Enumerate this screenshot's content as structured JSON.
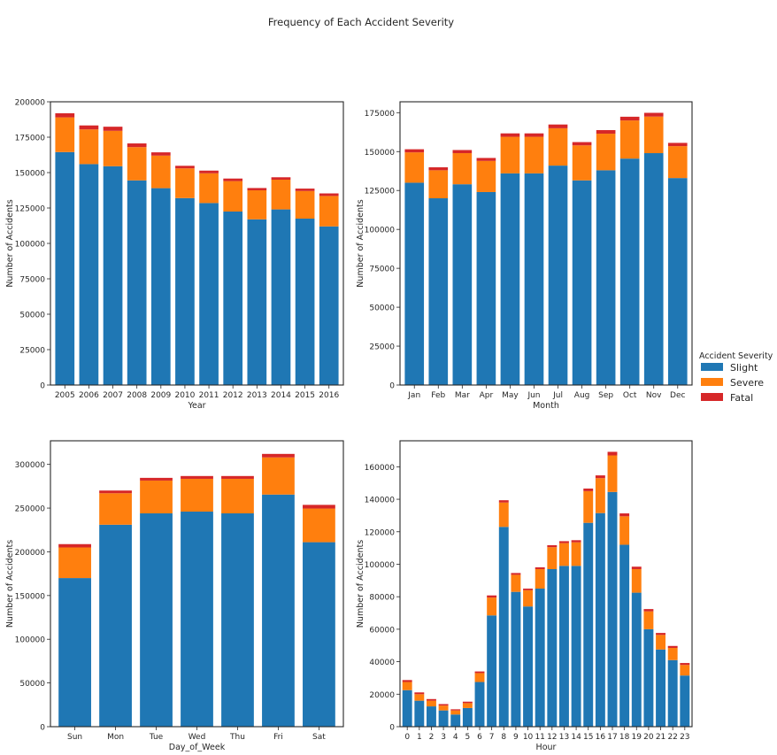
{
  "title": "Frequency of Each Accident Severity",
  "legend": {
    "title": "Accident Severity",
    "placement": "right-center",
    "entries": [
      {
        "name": "Slight",
        "color": "#1f77b4"
      },
      {
        "name": "Severe",
        "color": "#ff7f0e"
      },
      {
        "name": "Fatal",
        "color": "#d62728"
      }
    ]
  },
  "chart_data": [
    {
      "type": "bar",
      "stacked": true,
      "xlabel": "Year",
      "ylabel": "Number of Accidents",
      "ylim": [
        0,
        200000
      ],
      "yticks": [
        0,
        25000,
        50000,
        75000,
        100000,
        125000,
        150000,
        175000,
        200000
      ],
      "categories": [
        "2005",
        "2006",
        "2007",
        "2008",
        "2009",
        "2010",
        "2011",
        "2012",
        "2013",
        "2014",
        "2015",
        "2016"
      ],
      "series": [
        {
          "name": "Slight",
          "values": [
            164500,
            156000,
            154500,
            144500,
            139000,
            132000,
            128500,
            122500,
            117000,
            124000,
            117500,
            112000
          ]
        },
        {
          "name": "Severe",
          "values": [
            24500,
            24500,
            25000,
            23500,
            23000,
            21000,
            21000,
            21500,
            20500,
            21000,
            19500,
            21500
          ]
        },
        {
          "name": "Fatal",
          "values": [
            2900,
            2800,
            2900,
            2600,
            2300,
            1800,
            1900,
            1800,
            1600,
            1700,
            1700,
            1800
          ]
        }
      ]
    },
    {
      "type": "bar",
      "stacked": true,
      "xlabel": "Month",
      "ylabel": "Number of Accidents",
      "ylim": [
        0,
        182000
      ],
      "yticks": [
        0,
        25000,
        50000,
        75000,
        100000,
        125000,
        150000,
        175000
      ],
      "categories": [
        "Jan",
        "Feb",
        "Mar",
        "Apr",
        "May",
        "Jun",
        "Jul",
        "Aug",
        "Sep",
        "Oct",
        "Nov",
        "Dec"
      ],
      "series": [
        {
          "name": "Slight",
          "values": [
            130000,
            120000,
            129000,
            124000,
            136000,
            136000,
            141000,
            131500,
            138000,
            145500,
            149000,
            133000
          ]
        },
        {
          "name": "Severe",
          "values": [
            19500,
            18000,
            20000,
            20000,
            23500,
            23500,
            24000,
            22500,
            23500,
            24500,
            23500,
            20500
          ]
        },
        {
          "name": "Fatal",
          "values": [
            2000,
            1900,
            2000,
            1900,
            2200,
            2200,
            2400,
            2100,
            2300,
            2400,
            2400,
            2100
          ]
        }
      ]
    },
    {
      "type": "bar",
      "stacked": true,
      "xlabel": "Day_of_Week",
      "ylabel": "Number of Accidents",
      "ylim": [
        0,
        327000
      ],
      "yticks": [
        0,
        50000,
        100000,
        150000,
        200000,
        250000,
        300000
      ],
      "categories": [
        "Sun",
        "Mon",
        "Tue",
        "Wed",
        "Thu",
        "Fri",
        "Sat"
      ],
      "series": [
        {
          "name": "Slight",
          "values": [
            170000,
            231000,
            244000,
            246000,
            244000,
            265500,
            211000
          ]
        },
        {
          "name": "Severe",
          "values": [
            35000,
            36000,
            37500,
            37500,
            39500,
            42500,
            38500
          ]
        },
        {
          "name": "Fatal",
          "values": [
            3800,
            3100,
            3100,
            3200,
            3200,
            4000,
            4200
          ]
        }
      ]
    },
    {
      "type": "bar",
      "stacked": true,
      "xlabel": "Hour",
      "ylabel": "Number of Accidents",
      "ylim": [
        0,
        176000
      ],
      "yticks": [
        0,
        20000,
        40000,
        60000,
        80000,
        100000,
        120000,
        140000,
        160000
      ],
      "categories": [
        "0",
        "1",
        "2",
        "3",
        "4",
        "5",
        "6",
        "7",
        "8",
        "9",
        "10",
        "11",
        "12",
        "13",
        "14",
        "15",
        "16",
        "17",
        "18",
        "19",
        "20",
        "21",
        "22",
        "23"
      ],
      "series": [
        {
          "name": "Slight",
          "values": [
            22500,
            16000,
            12500,
            10000,
            7500,
            11500,
            27500,
            68500,
            123000,
            83000,
            74000,
            85000,
            97000,
            99000,
            99000,
            125500,
            131500,
            144500,
            112000,
            82500,
            60000,
            47500,
            41000,
            31500
          ]
        },
        {
          "name": "Severe",
          "values": [
            5000,
            4000,
            3500,
            3000,
            2500,
            3000,
            5500,
            11000,
            15000,
            10500,
            10000,
            12000,
            13500,
            14000,
            14500,
            19500,
            21500,
            22500,
            17500,
            14500,
            11000,
            9000,
            7500,
            6500
          ]
        },
        {
          "name": "Fatal",
          "values": [
            1200,
            1100,
            1000,
            900,
            700,
            900,
            1000,
            1300,
            1400,
            1100,
            1000,
            1100,
            1200,
            1200,
            1300,
            1600,
            1700,
            2200,
            1800,
            1500,
            1400,
            1200,
            1200,
            1200
          ]
        }
      ]
    }
  ]
}
